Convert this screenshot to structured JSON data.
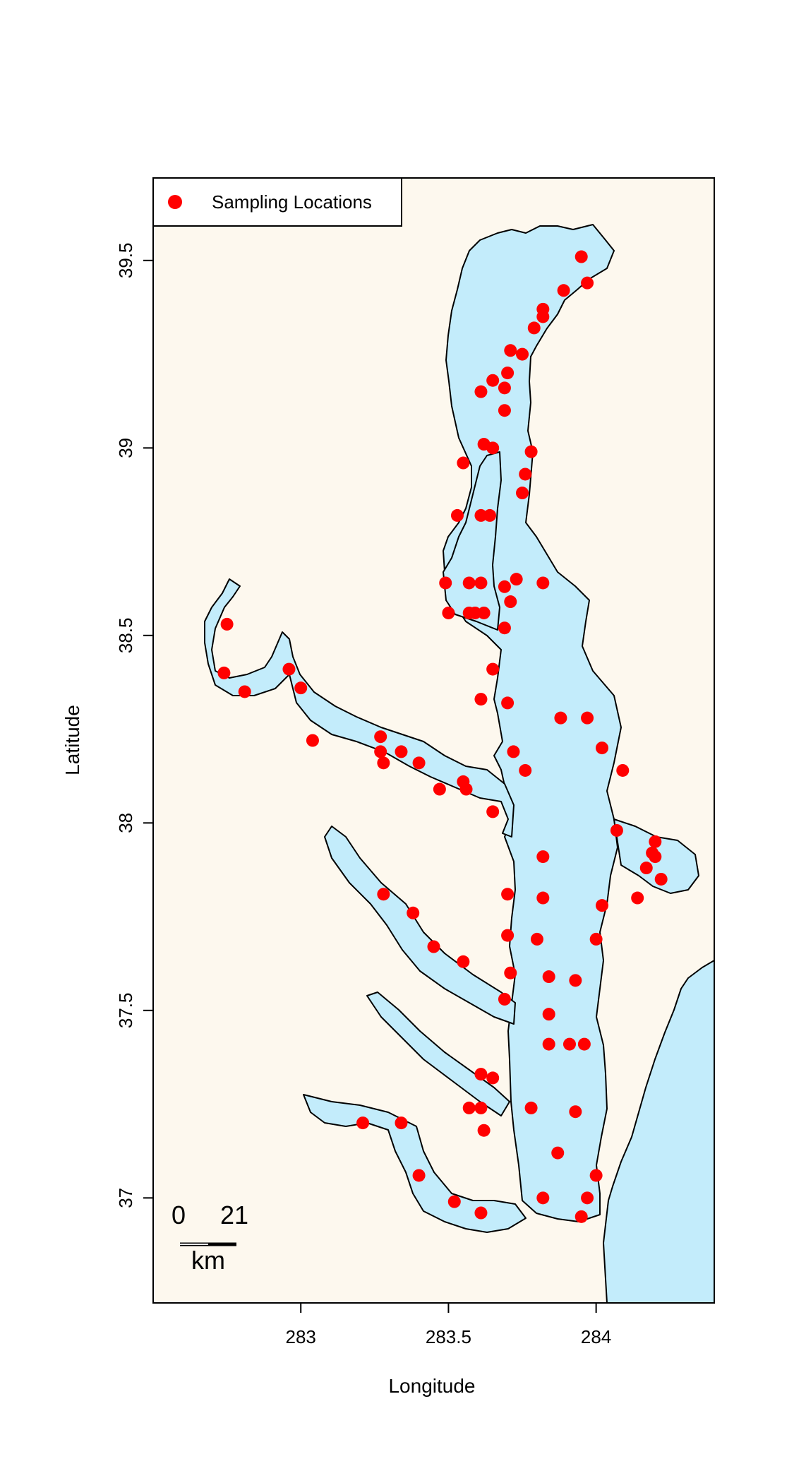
{
  "axes": {
    "xlabel": "Longitude",
    "ylabel": "Latitude",
    "xlim": [
      282.5,
      284.4
    ],
    "ylim": [
      36.72,
      39.72
    ],
    "x_ticks": [
      {
        "value": 283,
        "label": "283"
      },
      {
        "value": 283.5,
        "label": "283.5"
      },
      {
        "value": 284,
        "label": "284"
      }
    ],
    "y_ticks": [
      {
        "value": 37,
        "label": "37"
      },
      {
        "value": 37.5,
        "label": "37.5"
      },
      {
        "value": 38,
        "label": "38"
      },
      {
        "value": 38.5,
        "label": "38.5"
      },
      {
        "value": 39,
        "label": "39"
      },
      {
        "value": 39.5,
        "label": "39.5"
      }
    ]
  },
  "legend": {
    "label": "Sampling Locations",
    "position": "top-left"
  },
  "scale_bar": {
    "left_label": "0",
    "right_label": "21",
    "unit": "km"
  },
  "colors": {
    "land": "#fdf8ee",
    "water": "#c3ecfb",
    "points": "#ff0000",
    "outline": "#000000"
  },
  "chart_data": {
    "type": "scatter",
    "series": [
      {
        "name": "Sampling Locations",
        "points": [
          [
            283.95,
            39.51
          ],
          [
            283.97,
            39.44
          ],
          [
            283.89,
            39.42
          ],
          [
            283.82,
            39.37
          ],
          [
            283.82,
            39.35
          ],
          [
            283.79,
            39.32
          ],
          [
            283.71,
            39.26
          ],
          [
            283.75,
            39.25
          ],
          [
            283.7,
            39.2
          ],
          [
            283.65,
            39.18
          ],
          [
            283.69,
            39.16
          ],
          [
            283.61,
            39.15
          ],
          [
            283.69,
            39.1
          ],
          [
            283.62,
            39.01
          ],
          [
            283.65,
            39.0
          ],
          [
            283.78,
            38.99
          ],
          [
            283.55,
            38.96
          ],
          [
            283.76,
            38.93
          ],
          [
            283.75,
            38.88
          ],
          [
            283.53,
            38.82
          ],
          [
            283.61,
            38.82
          ],
          [
            283.64,
            38.82
          ],
          [
            283.49,
            38.64
          ],
          [
            283.57,
            38.64
          ],
          [
            283.61,
            38.64
          ],
          [
            283.69,
            38.63
          ],
          [
            283.73,
            38.65
          ],
          [
            283.82,
            38.64
          ],
          [
            283.71,
            38.59
          ],
          [
            283.5,
            38.56
          ],
          [
            283.57,
            38.56
          ],
          [
            283.59,
            38.56
          ],
          [
            283.62,
            38.56
          ],
          [
            283.69,
            38.52
          ],
          [
            282.75,
            38.53
          ],
          [
            282.74,
            38.4
          ],
          [
            282.81,
            38.35
          ],
          [
            282.96,
            38.41
          ],
          [
            283.0,
            38.36
          ],
          [
            283.04,
            38.22
          ],
          [
            283.27,
            38.23
          ],
          [
            283.27,
            38.19
          ],
          [
            283.34,
            38.19
          ],
          [
            283.28,
            38.16
          ],
          [
            283.4,
            38.16
          ],
          [
            283.47,
            38.09
          ],
          [
            283.55,
            38.11
          ],
          [
            283.56,
            38.09
          ],
          [
            283.65,
            38.41
          ],
          [
            283.61,
            38.33
          ],
          [
            283.7,
            38.32
          ],
          [
            283.88,
            38.28
          ],
          [
            283.97,
            38.28
          ],
          [
            283.72,
            38.19
          ],
          [
            283.76,
            38.14
          ],
          [
            284.02,
            38.2
          ],
          [
            284.09,
            38.14
          ],
          [
            283.65,
            38.03
          ],
          [
            284.07,
            37.98
          ],
          [
            284.2,
            37.95
          ],
          [
            284.19,
            37.92
          ],
          [
            284.2,
            37.91
          ],
          [
            284.17,
            37.88
          ],
          [
            284.22,
            37.85
          ],
          [
            283.82,
            37.91
          ],
          [
            283.28,
            37.81
          ],
          [
            283.7,
            37.81
          ],
          [
            283.82,
            37.8
          ],
          [
            284.14,
            37.8
          ],
          [
            284.02,
            37.78
          ],
          [
            283.38,
            37.76
          ],
          [
            283.7,
            37.7
          ],
          [
            283.8,
            37.69
          ],
          [
            284.0,
            37.69
          ],
          [
            283.45,
            37.67
          ],
          [
            283.55,
            37.63
          ],
          [
            283.71,
            37.6
          ],
          [
            283.84,
            37.59
          ],
          [
            283.93,
            37.58
          ],
          [
            283.69,
            37.53
          ],
          [
            283.84,
            37.49
          ],
          [
            283.84,
            37.41
          ],
          [
            283.91,
            37.41
          ],
          [
            283.96,
            37.41
          ],
          [
            283.61,
            37.33
          ],
          [
            283.65,
            37.32
          ],
          [
            283.57,
            37.24
          ],
          [
            283.61,
            37.24
          ],
          [
            283.78,
            37.24
          ],
          [
            283.93,
            37.23
          ],
          [
            283.21,
            37.2
          ],
          [
            283.34,
            37.2
          ],
          [
            283.62,
            37.18
          ],
          [
            283.87,
            37.12
          ],
          [
            284.0,
            37.06
          ],
          [
            283.4,
            37.06
          ],
          [
            283.52,
            36.99
          ],
          [
            283.82,
            37.0
          ],
          [
            283.97,
            37.0
          ],
          [
            283.61,
            36.96
          ],
          [
            283.95,
            36.95
          ]
        ]
      }
    ]
  }
}
